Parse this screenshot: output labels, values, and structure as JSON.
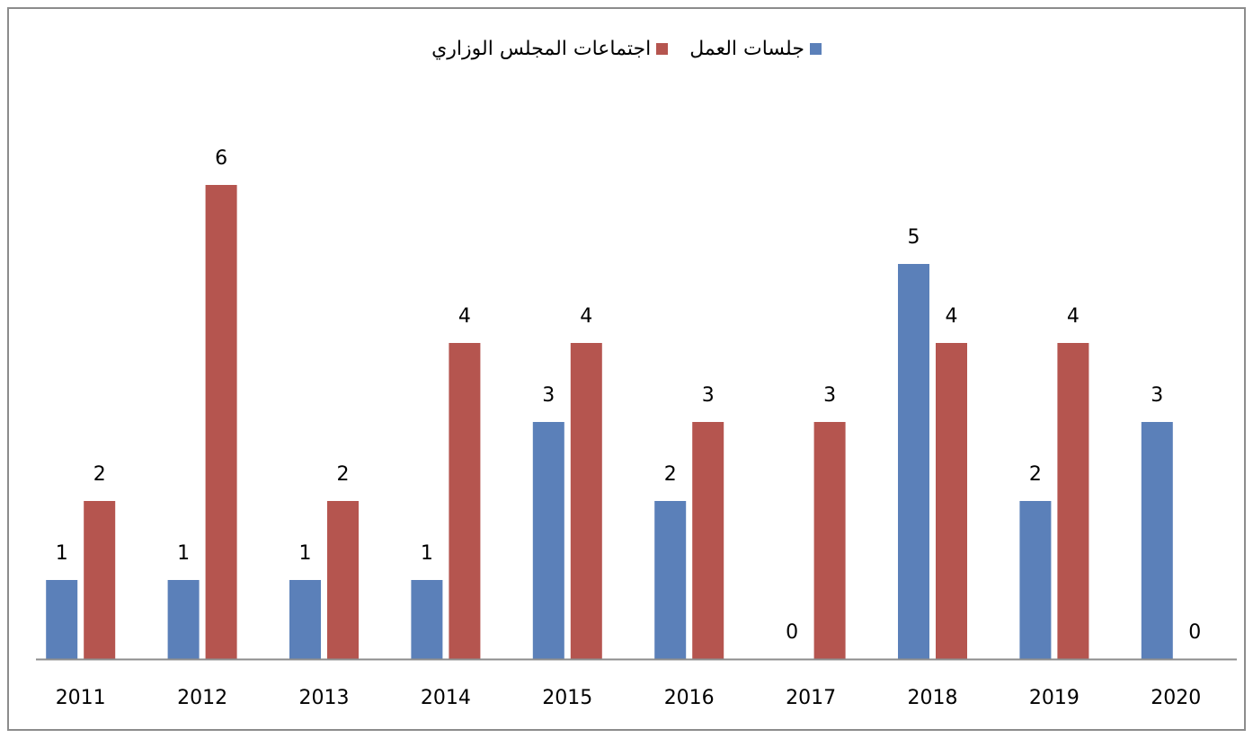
{
  "chart_data": {
    "type": "bar",
    "categories": [
      "2011",
      "2012",
      "2013",
      "2014",
      "2015",
      "2016",
      "2017",
      "2018",
      "2019",
      "2020"
    ],
    "series": [
      {
        "name": "جلسات العمل",
        "color": "#5b80b9",
        "values": [
          1,
          1,
          1,
          1,
          3,
          2,
          0,
          5,
          2,
          3
        ]
      },
      {
        "name": "اجتماعات المجلس الوزاري",
        "color": "#b5554f",
        "values": [
          2,
          6,
          2,
          4,
          4,
          3,
          3,
          4,
          4,
          0
        ]
      }
    ],
    "title": "",
    "xlabel": "",
    "ylabel": "",
    "ylim": [
      0,
      6
    ],
    "grid": false,
    "legend_position": "top-center",
    "data_labels": true,
    "axis_color": "#8c8c8c"
  }
}
